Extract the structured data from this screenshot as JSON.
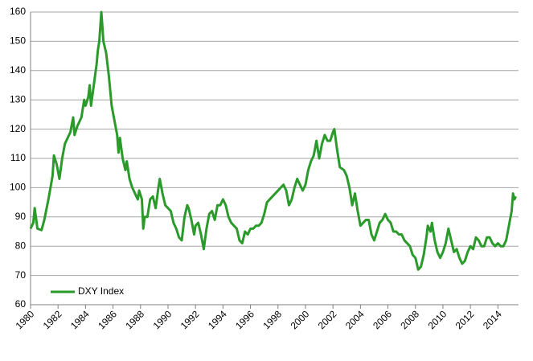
{
  "chart_data": {
    "type": "line",
    "x": [
      1980.0,
      1980.2,
      1980.3,
      1980.5,
      1980.8,
      1981.0,
      1981.3,
      1981.6,
      1981.7,
      1981.9,
      1982.1,
      1982.3,
      1982.5,
      1982.7,
      1982.9,
      1983.1,
      1983.2,
      1983.4,
      1983.7,
      1983.9,
      1984.0,
      1984.2,
      1984.3,
      1984.4,
      1984.6,
      1984.8,
      1984.9,
      1985.0,
      1985.15,
      1985.3,
      1985.5,
      1985.7,
      1985.9,
      1986.1,
      1986.3,
      1986.4,
      1986.5,
      1986.7,
      1986.9,
      1987.0,
      1987.2,
      1987.4,
      1987.6,
      1987.8,
      1987.9,
      1988.1,
      1988.2,
      1988.3,
      1988.5,
      1988.7,
      1988.9,
      1989.1,
      1989.3,
      1989.4,
      1989.6,
      1989.8,
      1990.0,
      1990.2,
      1990.4,
      1990.6,
      1990.8,
      1991.0,
      1991.2,
      1991.4,
      1991.5,
      1991.7,
      1991.9,
      1992.0,
      1992.2,
      1992.4,
      1992.6,
      1992.8,
      1993.0,
      1993.2,
      1993.4,
      1993.6,
      1993.8,
      1994.0,
      1994.2,
      1994.4,
      1994.6,
      1994.8,
      1995.0,
      1995.2,
      1995.4,
      1995.6,
      1995.8,
      1996.0,
      1996.2,
      1996.4,
      1996.6,
      1996.8,
      1997.0,
      1997.2,
      1997.4,
      1997.6,
      1997.8,
      1998.0,
      1998.2,
      1998.4,
      1998.6,
      1998.8,
      1999.0,
      1999.2,
      1999.4,
      1999.6,
      1999.8,
      2000.0,
      2000.2,
      2000.4,
      2000.6,
      2000.8,
      2001.0,
      2001.2,
      2001.4,
      2001.6,
      2001.8,
      2002.0,
      2002.1,
      2002.3,
      2002.5,
      2002.8,
      2003.0,
      2003.2,
      2003.4,
      2003.6,
      2003.8,
      2004.0,
      2004.2,
      2004.4,
      2004.6,
      2004.8,
      2005.0,
      2005.2,
      2005.4,
      2005.6,
      2005.8,
      2006.0,
      2006.2,
      2006.4,
      2006.6,
      2006.8,
      2007.0,
      2007.2,
      2007.4,
      2007.6,
      2007.8,
      2008.0,
      2008.2,
      2008.4,
      2008.6,
      2008.8,
      2008.9,
      2009.1,
      2009.2,
      2009.4,
      2009.6,
      2009.8,
      2010.0,
      2010.2,
      2010.4,
      2010.6,
      2010.8,
      2011.0,
      2011.2,
      2011.4,
      2011.6,
      2011.8,
      2012.0,
      2012.2,
      2012.4,
      2012.6,
      2012.8,
      2013.0,
      2013.2,
      2013.4,
      2013.6,
      2013.8,
      2014.0,
      2014.2,
      2014.4,
      2014.6,
      2014.8,
      2015.0,
      2015.1,
      2015.2,
      2015.3
    ],
    "series": [
      {
        "name": "DXY Index",
        "color": "#2a9a2a",
        "values": [
          86,
          88,
          93,
          86,
          85.5,
          89,
          96,
          104,
          111,
          108,
          103,
          110,
          115,
          117,
          119,
          124,
          118,
          121,
          124,
          130,
          128,
          131,
          135,
          128,
          135,
          142,
          147,
          150,
          160,
          150,
          146,
          138,
          128,
          123,
          118,
          112,
          117,
          110,
          106,
          109,
          103,
          100,
          98,
          96,
          99,
          96,
          86,
          90,
          90,
          96,
          97,
          93,
          100,
          103,
          98,
          94,
          93,
          92,
          88,
          86,
          83,
          82,
          90,
          94,
          93,
          89,
          84,
          87,
          88,
          84,
          79,
          86,
          91,
          92,
          89,
          94,
          94,
          96,
          94,
          90,
          88,
          87,
          86,
          82,
          81,
          85,
          84,
          86,
          86,
          87,
          87,
          88,
          91,
          95,
          96,
          97,
          98,
          99,
          100,
          101,
          99,
          94,
          96,
          100,
          103,
          101,
          99,
          101,
          106,
          109,
          111,
          116,
          110,
          115,
          118,
          116,
          116,
          119,
          120,
          113,
          107,
          106,
          104,
          100,
          94,
          98,
          92,
          87,
          88,
          89,
          89,
          84,
          82,
          85,
          88,
          89,
          91,
          89,
          88,
          85,
          85,
          84,
          84,
          82,
          81,
          80,
          77,
          76,
          72,
          73,
          77,
          83,
          87,
          85,
          88,
          82,
          78,
          76,
          78,
          81,
          86,
          82,
          78,
          79,
          76,
          74,
          75,
          78,
          80,
          79,
          83,
          82,
          80,
          80,
          83,
          83,
          81,
          80,
          81,
          80,
          80,
          82,
          87,
          92,
          98,
          96,
          97
        ]
      }
    ],
    "xlim": [
      1980,
      2015.5
    ],
    "xticks": [
      1980,
      1982,
      1984,
      1986,
      1988,
      1990,
      1992,
      1994,
      1996,
      1998,
      2000,
      2002,
      2004,
      2006,
      2008,
      2010,
      2012,
      2014
    ],
    "ylim": [
      60,
      160
    ],
    "yticks": [
      60,
      70,
      80,
      90,
      100,
      110,
      120,
      130,
      140,
      150,
      160
    ],
    "grid": true,
    "legend": "lower left"
  }
}
